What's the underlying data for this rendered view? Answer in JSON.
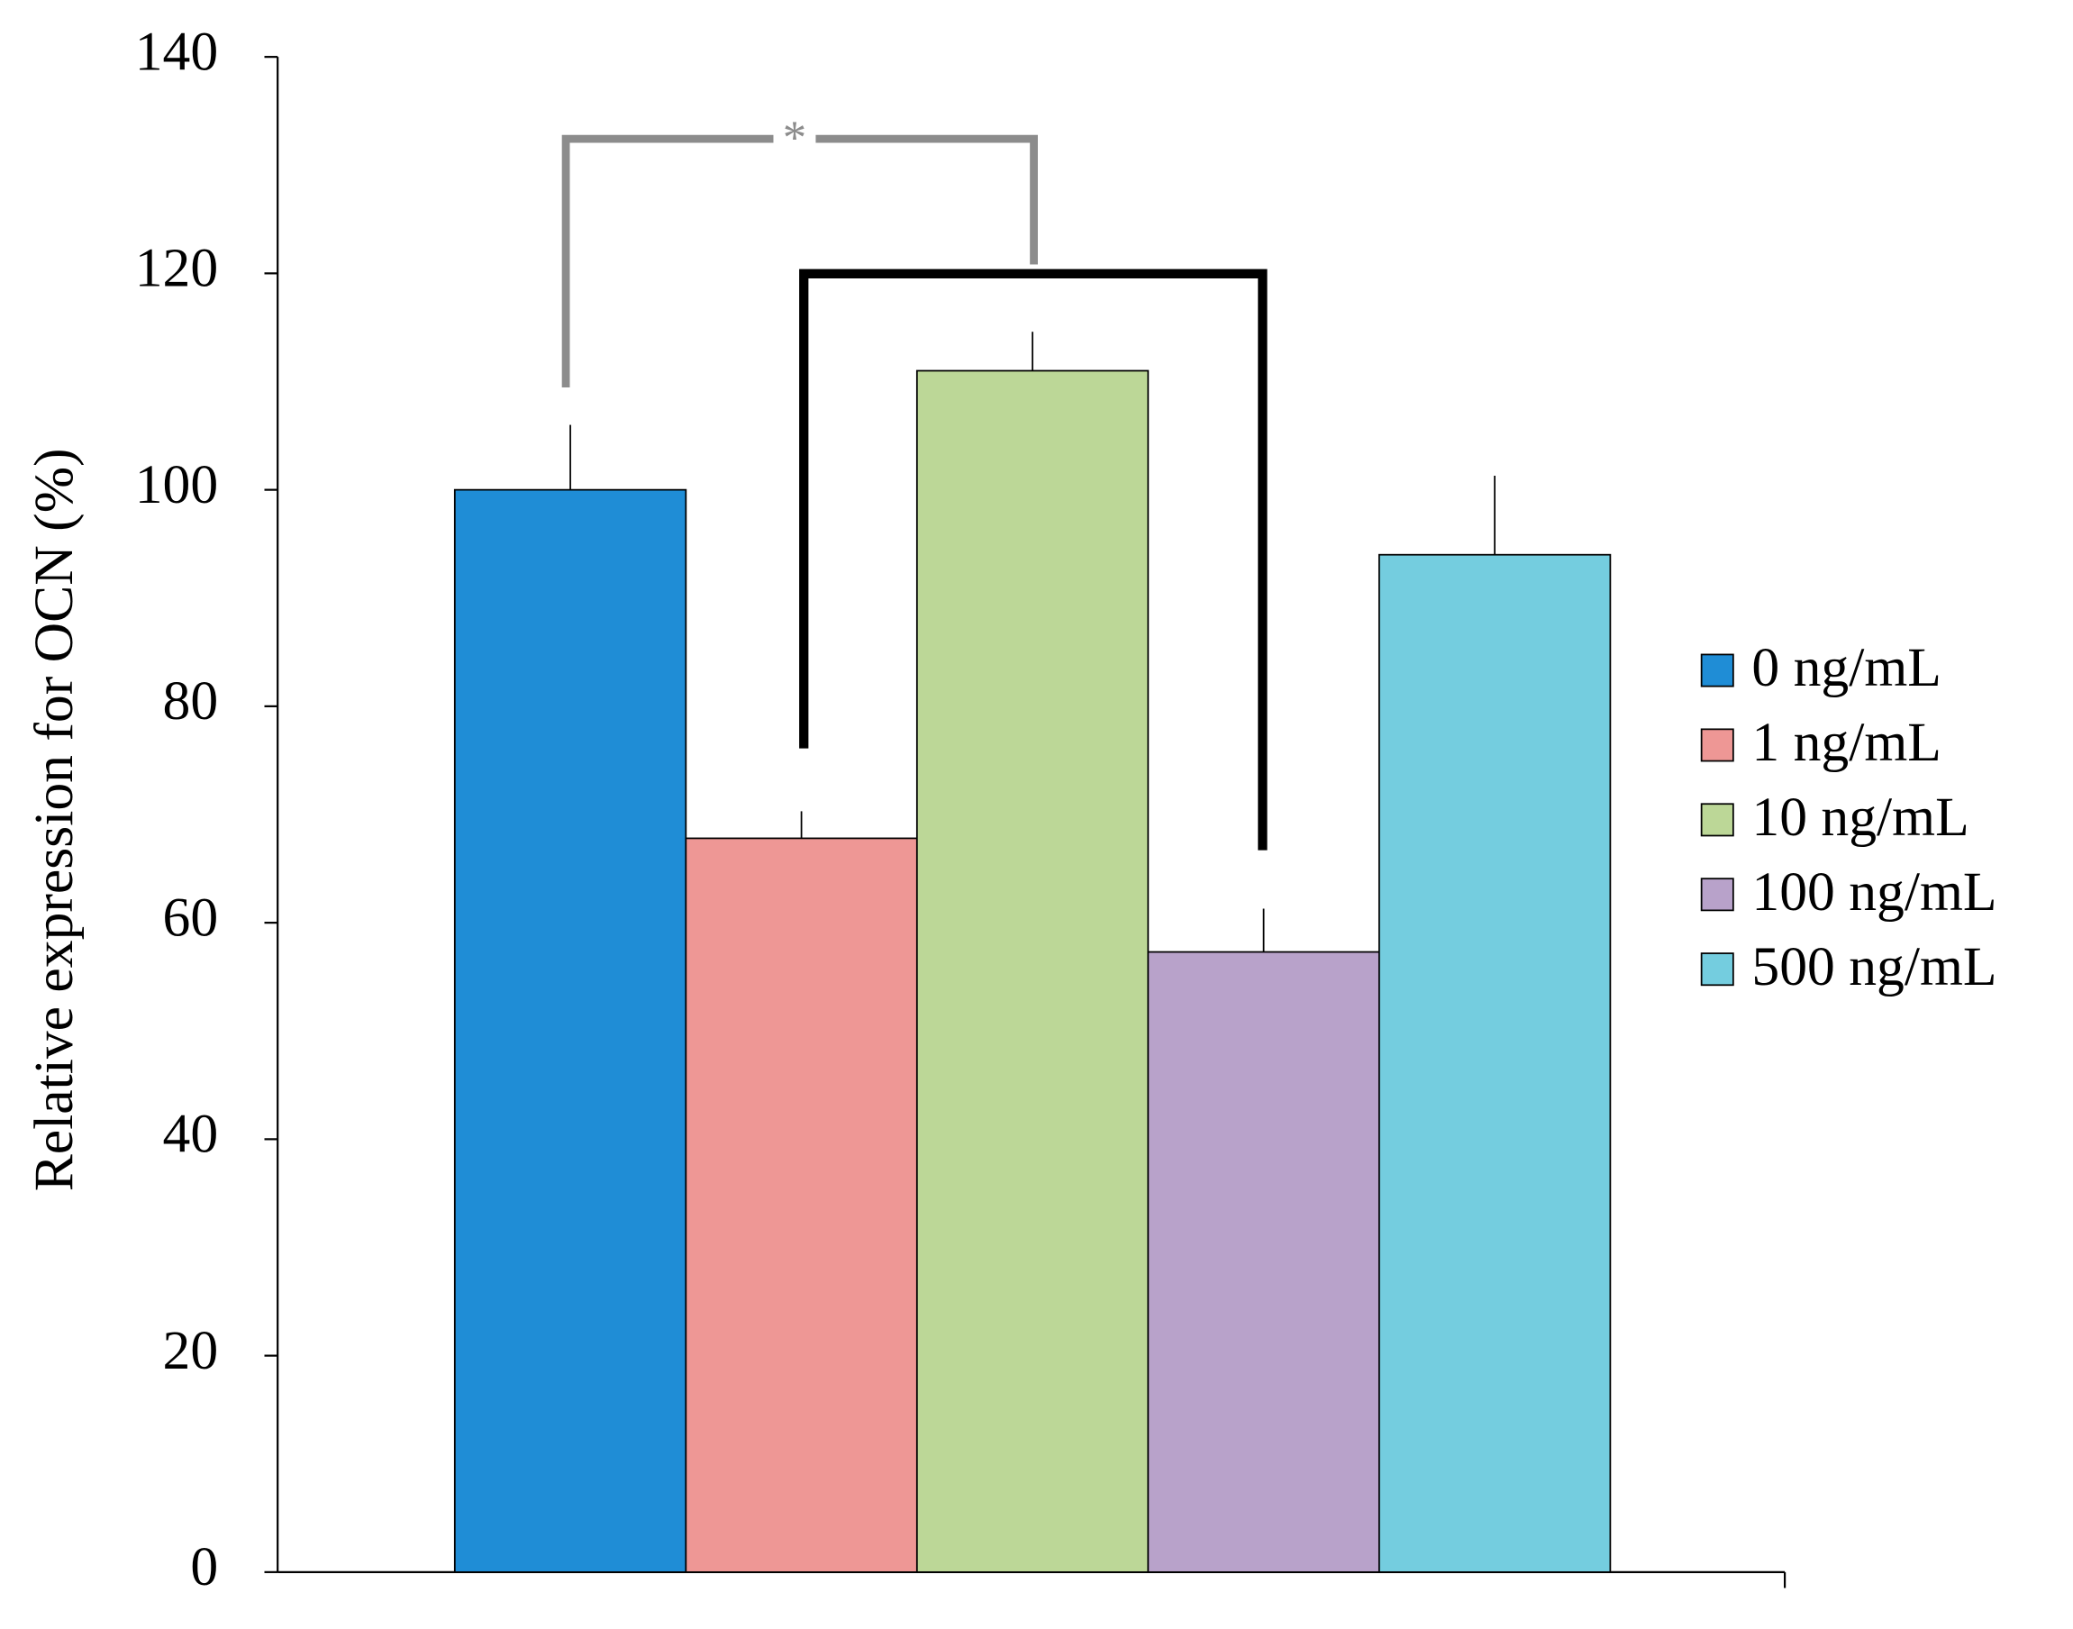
{
  "chart_data": {
    "type": "bar",
    "y_label": "Relative expression for OCN (%)",
    "categories": [
      null
    ],
    "series": [
      {
        "name": "0 ng/mL",
        "color": "#1f8dd6",
        "values": [
          100
        ],
        "errors": [
          6
        ]
      },
      {
        "name": "1 ng/mL",
        "color": "#ee9795",
        "values": [
          67.8
        ],
        "errors": [
          2.5
        ]
      },
      {
        "name": "10 ng/mL",
        "color": "#bcd797",
        "values": [
          111
        ],
        "errors": [
          3.6
        ]
      },
      {
        "name": "100 ng/mL",
        "color": "#b8a2ca",
        "values": [
          57.3
        ],
        "errors": [
          4
        ]
      },
      {
        "name": "500 ng/mL",
        "color": "#74cddf",
        "values": [
          94
        ],
        "errors": [
          7.3
        ]
      }
    ],
    "annotations": [
      "*"
    ],
    "ylim": [
      0,
      140
    ],
    "yticks": [
      0,
      20,
      40,
      60,
      80,
      100,
      120,
      140
    ],
    "legend": "right"
  }
}
